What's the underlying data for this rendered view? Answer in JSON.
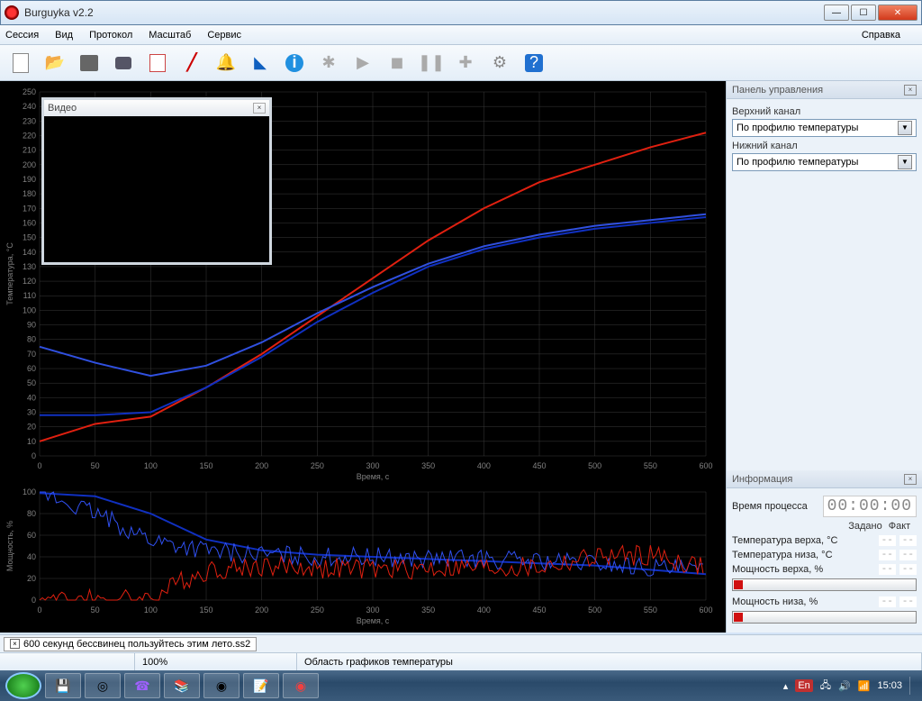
{
  "app": {
    "title": "Burguyka v2.2"
  },
  "menu": {
    "session": "Сессия",
    "view": "Вид",
    "protocol": "Протокол",
    "scale": "Масштаб",
    "service": "Сервис",
    "help": "Справка"
  },
  "video": {
    "title": "Видео"
  },
  "chart_top": {
    "type": "line",
    "ylabel": "Температура, °C",
    "xlabel": "Время, с",
    "xlim": [
      0,
      600
    ],
    "ylim": [
      0,
      250
    ],
    "xtick_step": 50,
    "ytick_step": 10,
    "background_color": "#000000",
    "grid_color": "#3a3a3a",
    "axis_text_color": "#808080",
    "label_fontsize": 9,
    "series": [
      {
        "name": "red",
        "color": "#e02010",
        "width": 2,
        "x": [
          0,
          50,
          100,
          150,
          200,
          250,
          300,
          350,
          400,
          450,
          500,
          550,
          600
        ],
        "y": [
          10,
          22,
          27,
          47,
          70,
          96,
          122,
          148,
          170,
          188,
          200,
          212,
          222
        ]
      },
      {
        "name": "blue1",
        "color": "#1030c0",
        "width": 2,
        "x": [
          0,
          50,
          100,
          150,
          200,
          250,
          300,
          350,
          400,
          450,
          500,
          550,
          600
        ],
        "y": [
          28,
          28,
          30,
          47,
          68,
          92,
          112,
          130,
          142,
          150,
          156,
          160,
          164
        ]
      },
      {
        "name": "blue2",
        "color": "#3050e0",
        "width": 2,
        "x": [
          0,
          50,
          100,
          150,
          200,
          250,
          300,
          350,
          400,
          450,
          500,
          550,
          600
        ],
        "y": [
          75,
          64,
          55,
          62,
          78,
          98,
          116,
          132,
          144,
          152,
          158,
          162,
          166
        ]
      }
    ]
  },
  "chart_bot": {
    "type": "line",
    "ylabel": "Мощность, %",
    "xlabel": "Время, с",
    "xlim": [
      0,
      600
    ],
    "ylim": [
      0,
      100
    ],
    "xtick_step": 50,
    "ytick_step": 20,
    "background_color": "#000000",
    "grid_color": "#3a3a3a",
    "series": [
      {
        "name": "blue_smooth",
        "color": "#1030c0",
        "width": 2,
        "x": [
          0,
          50,
          100,
          150,
          200,
          250,
          300,
          350,
          400,
          450,
          500,
          550,
          600
        ],
        "y": [
          99,
          96,
          80,
          56,
          46,
          42,
          40,
          38,
          36,
          34,
          32,
          28,
          24
        ]
      },
      {
        "name": "blue_noise",
        "color": "#3050f0",
        "width": 1,
        "noise": 18,
        "x": [
          0,
          50,
          100,
          150,
          200,
          250,
          300,
          350,
          400,
          450,
          500,
          550,
          600
        ],
        "y": [
          99,
          80,
          56,
          46,
          42,
          40,
          40,
          38,
          38,
          36,
          34,
          30,
          26
        ]
      },
      {
        "name": "red_noise",
        "color": "#e02010",
        "width": 1,
        "noise": 20,
        "x": [
          0,
          50,
          100,
          150,
          200,
          250,
          300,
          350,
          400,
          450,
          500,
          550,
          600
        ],
        "y": [
          0,
          0,
          2,
          28,
          32,
          30,
          28,
          30,
          30,
          30,
          40,
          42,
          30
        ]
      }
    ]
  },
  "panel_control": {
    "title": "Панель управления",
    "upper_label": "Верхний канал",
    "lower_label": "Нижний канал",
    "combo_value": "По профилю температуры"
  },
  "panel_info": {
    "title": "Информация",
    "time_label": "Время процесса",
    "time_value": "00:00:00",
    "col_set": "Задано",
    "col_act": "Факт",
    "row_t_top": "Температура верха, °C",
    "row_t_bot": "Температура низа, °C",
    "row_p_top": "Мощность верха, %",
    "row_p_bot": "Мощность низа, %",
    "dash": "--"
  },
  "tab": {
    "name": "600 секунд бессвинец пользуйтесь этим лето.ss2"
  },
  "status": {
    "zoom": "100%",
    "area_label": "Область графиков температуры"
  },
  "tray": {
    "lang": "En",
    "clock": "15:03"
  }
}
